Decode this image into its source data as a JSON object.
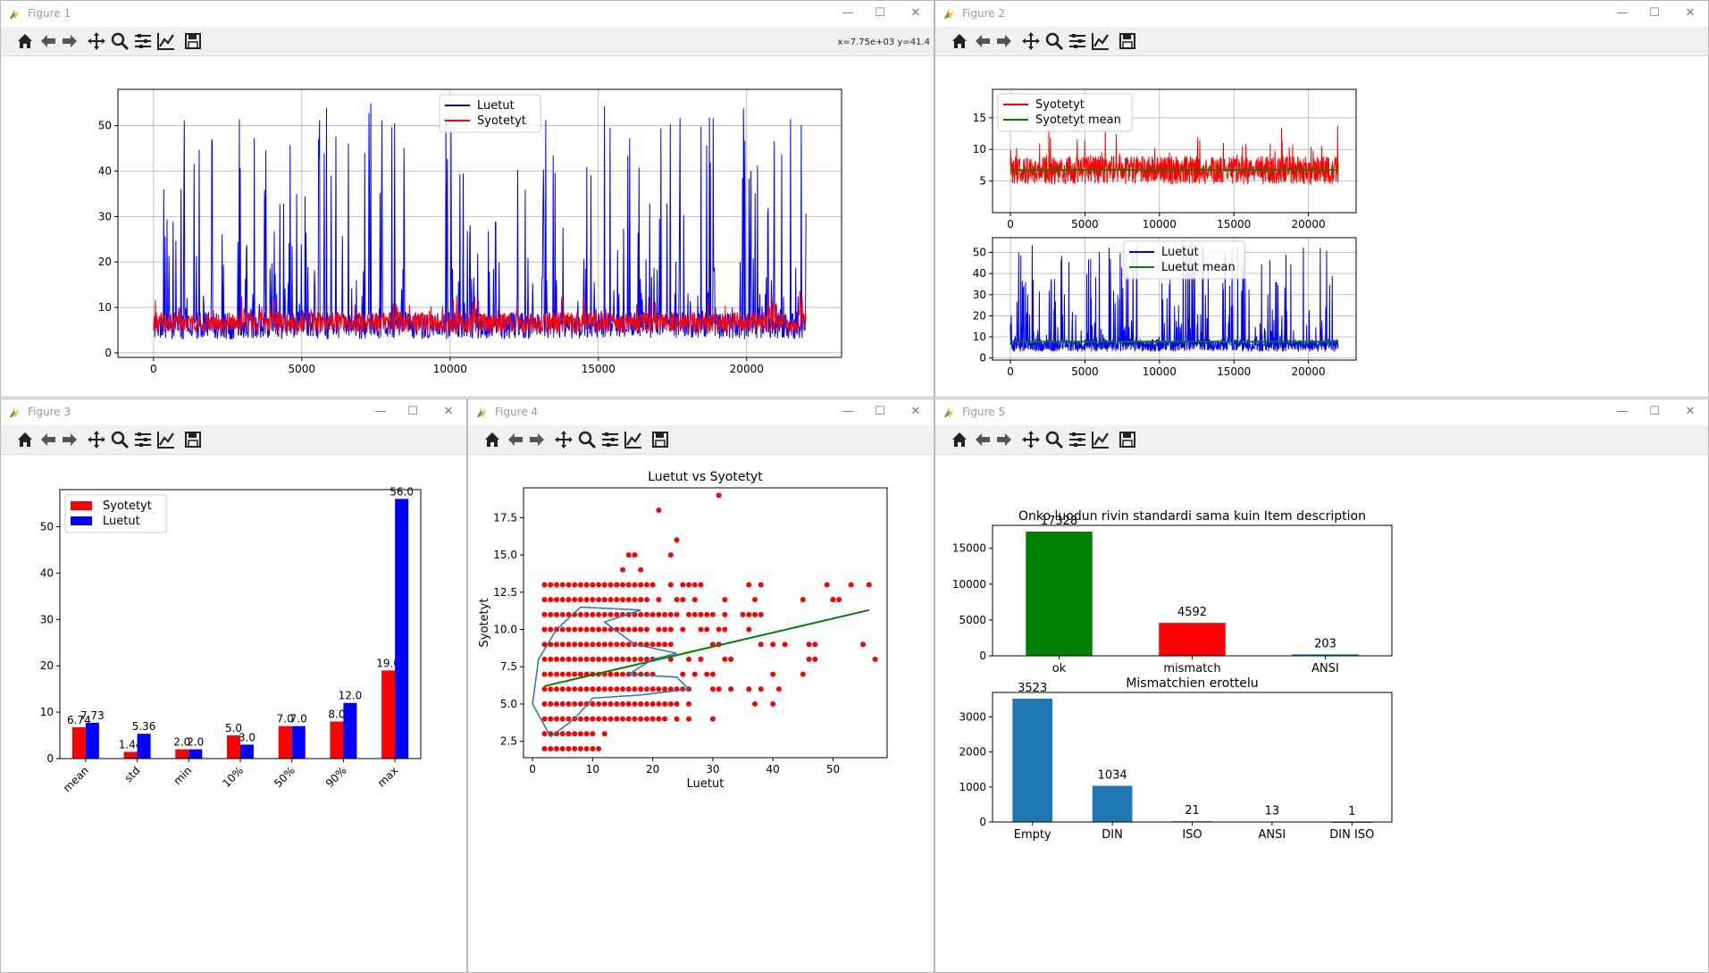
{
  "windows": {
    "fig1": {
      "title": "Figure 1",
      "coords": "x=7.75e+03 y=41.4"
    },
    "fig2": {
      "title": "Figure 2"
    },
    "fig3": {
      "title": "Figure 3"
    },
    "fig4": {
      "title": "Figure 4"
    },
    "fig5": {
      "title": "Figure 5"
    }
  },
  "titlebar": {
    "minimize": "—",
    "maximize": "☐",
    "close": "✕"
  },
  "toolbar_icons": [
    "home-icon",
    "back-icon",
    "forward-icon",
    "pan-icon",
    "zoom-icon",
    "configure-subplots-icon",
    "edit-axis-icon",
    "save-icon"
  ],
  "chart_data": [
    {
      "figure": "Figure 1",
      "type": "line",
      "title": "",
      "xlabel": "",
      "ylabel": "",
      "xlim": [
        -1200,
        23200
      ],
      "ylim": [
        -1,
        58
      ],
      "xticks": [
        0,
        5000,
        10000,
        15000,
        20000
      ],
      "yticks": [
        0,
        10,
        20,
        30,
        40,
        50
      ],
      "grid": true,
      "legend": "top-center",
      "series": [
        {
          "name": "Luetut",
          "color": "#0000ff",
          "points_description_count": 22000,
          "range": [
            2,
            56
          ]
        },
        {
          "name": "Syotetyt",
          "color": "#ff0000",
          "points_description_count": 22000,
          "range": [
            2,
            19
          ]
        }
      ]
    },
    {
      "figure": "Figure 2",
      "type": "line",
      "subplot": "top",
      "xlim": [
        -1200,
        23200
      ],
      "ylim": [
        0,
        19.5
      ],
      "xticks": [
        0,
        5000,
        10000,
        15000,
        20000
      ],
      "yticks": [
        5,
        10,
        15
      ],
      "grid": true,
      "legend": "top-left",
      "series": [
        {
          "name": "Syotetyt",
          "color": "#ff0000"
        },
        {
          "name": "Syotetyt mean",
          "color": "#008000",
          "value": 6.74
        }
      ]
    },
    {
      "figure": "Figure 2",
      "type": "line",
      "subplot": "bottom",
      "xlim": [
        -1200,
        23200
      ],
      "ylim": [
        -1,
        57
      ],
      "xticks": [
        0,
        5000,
        10000,
        15000,
        20000
      ],
      "yticks": [
        0,
        10,
        20,
        30,
        40,
        50
      ],
      "grid": true,
      "legend": "top-center",
      "series": [
        {
          "name": "Luetut",
          "color": "#0000ff"
        },
        {
          "name": "Luetut mean",
          "color": "#008000",
          "value": 7.73
        }
      ]
    },
    {
      "figure": "Figure 3",
      "type": "bar",
      "categories": [
        "mean",
        "std",
        "min",
        "10%",
        "50%",
        "90%",
        "max"
      ],
      "ylim": [
        0,
        58
      ],
      "yticks": [
        0,
        10,
        20,
        30,
        40,
        50
      ],
      "legend": "top-left",
      "series": [
        {
          "name": "Syotetyt",
          "color": "#ff0000",
          "values": [
            6.74,
            1.44,
            2.0,
            5.0,
            7.0,
            8.0,
            19.0
          ],
          "labels": [
            "6.74",
            "1.44",
            "2.0",
            "5.0",
            "7.0",
            "8.0",
            "19.0"
          ]
        },
        {
          "name": "Luetut",
          "color": "#0000ff",
          "values": [
            7.73,
            5.36,
            2.0,
            3.0,
            7.0,
            12.0,
            56.0
          ],
          "labels": [
            "7.73",
            "5.36",
            "2.0",
            "3.0",
            "7.0",
            "12.0",
            "56.0"
          ]
        }
      ]
    },
    {
      "figure": "Figure 4",
      "type": "scatter",
      "title": "Luetut vs Syotetyt",
      "xlabel": "Luetut",
      "ylabel": "Syotetyt",
      "xlim": [
        -1.5,
        59
      ],
      "ylim": [
        1.4,
        19.5
      ],
      "xticks": [
        0,
        10,
        20,
        30,
        40,
        50
      ],
      "yticks": [
        2.5,
        5.0,
        7.5,
        10.0,
        12.5,
        15.0,
        17.5
      ],
      "ytick_labels": [
        "2.5",
        "5.0",
        "7.5",
        "10.0",
        "12.5",
        "15.0",
        "17.5"
      ],
      "point_color": "#ff0000",
      "regression": {
        "color": "#008000",
        "x": [
          2,
          56
        ],
        "y": [
          6.2,
          11.3
        ]
      },
      "kde_color": "#1f77b4"
    },
    {
      "figure": "Figure 5",
      "type": "bar",
      "subplot": "top",
      "title": "Onko luodun rivin standardi sama kuin Item description",
      "categories": [
        "ok",
        "mismatch",
        "ANSI"
      ],
      "values": [
        17328,
        4592,
        203
      ],
      "colors": [
        "#008000",
        "#ff0000",
        "#1f77b4"
      ],
      "ylim": [
        0,
        18200
      ],
      "yticks": [
        0,
        5000,
        10000,
        15000
      ]
    },
    {
      "figure": "Figure 5",
      "type": "bar",
      "subplot": "bottom",
      "title": "Mismatchien erottelu",
      "categories": [
        "Empty",
        "DIN",
        "ISO",
        "ANSI",
        "DIN ISO"
      ],
      "values": [
        3523,
        1034,
        21,
        13,
        1
      ],
      "colors": [
        "#1f77b4",
        "#1f77b4",
        "#1f77b4",
        "#1f77b4",
        "#1f77b4"
      ],
      "ylim": [
        0,
        3700
      ],
      "yticks": [
        0,
        1000,
        2000,
        3000
      ]
    }
  ]
}
